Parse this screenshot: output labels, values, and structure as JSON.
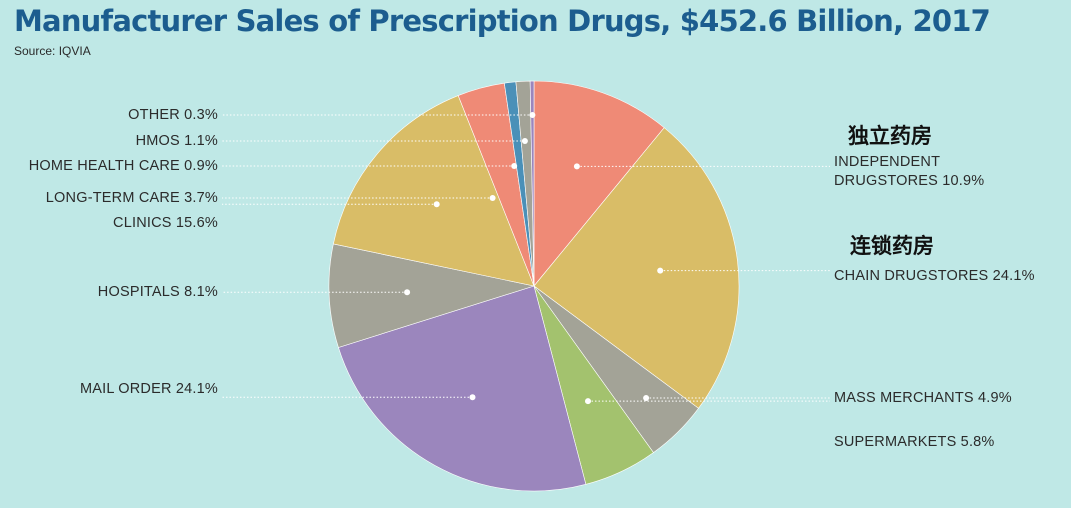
{
  "title": "Manufacturer Sales of Prescription Drugs, $452.6 Billion, 2017",
  "source": "Source: IQVIA",
  "annotations": {
    "independent_cn": "独立药房",
    "chain_cn": "连锁药房"
  },
  "chart_data": {
    "type": "pie",
    "title": "Manufacturer Sales of Prescription Drugs, $452.6 Billion, 2017",
    "unit": "%",
    "slices": [
      {
        "name": "INDEPENDENT DRUGSTORES",
        "value": 10.9,
        "label": "INDEPENDENT DRUGSTORES 10.9%",
        "line1": "INDEPENDENT",
        "line2": "DRUGSTORES 10.9%",
        "color": "#ef8a76"
      },
      {
        "name": "CHAIN DRUGSTORES",
        "value": 24.1,
        "label": "CHAIN DRUGSTORES 24.1%",
        "color": "#d9bd67"
      },
      {
        "name": "MASS MERCHANTS",
        "value": 4.9,
        "label": "MASS MERCHANTS 4.9%",
        "color": "#a3a397"
      },
      {
        "name": "SUPERMARKETS",
        "value": 5.8,
        "label": "SUPERMARKETS 5.8%",
        "color": "#a3c26e"
      },
      {
        "name": "MAIL ORDER",
        "value": 24.1,
        "label": "MAIL ORDER 24.1%",
        "color": "#9b86bd"
      },
      {
        "name": "HOSPITALS",
        "value": 8.1,
        "label": "HOSPITALS 8.1%",
        "color": "#a3a397"
      },
      {
        "name": "CLINICS",
        "value": 15.6,
        "label": "CLINICS 15.6%",
        "color": "#d9bd67"
      },
      {
        "name": "LONG-TERM CARE",
        "value": 3.7,
        "label": "LONG-TERM CARE 3.7%",
        "color": "#ef8a76"
      },
      {
        "name": "HOME HEALTH CARE",
        "value": 0.9,
        "label": "HOME HEALTH CARE 0.9%",
        "color": "#4a90b8"
      },
      {
        "name": "HMOS",
        "value": 1.1,
        "label": "HMOS 1.1%",
        "color": "#a3a397"
      },
      {
        "name": "OTHER",
        "value": 0.3,
        "label": "OTHER 0.3%",
        "color": "#9b86bd"
      }
    ]
  }
}
